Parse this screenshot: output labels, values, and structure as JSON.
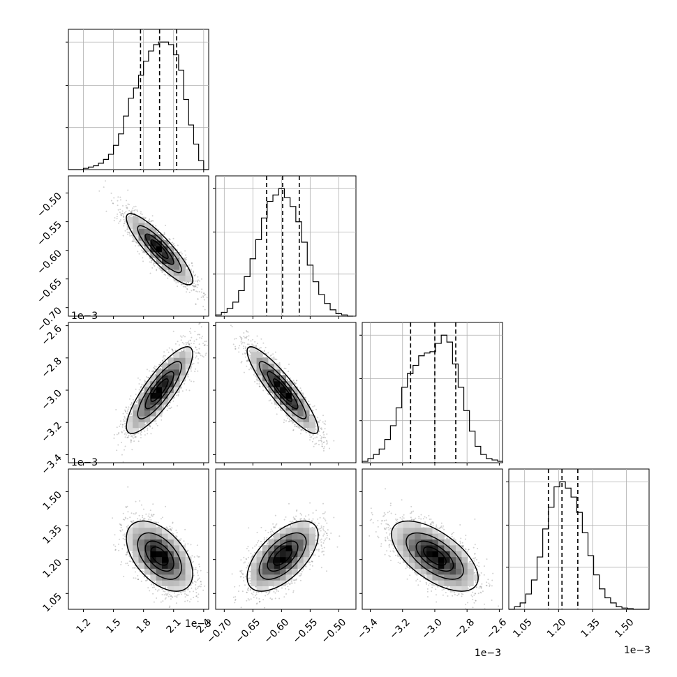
{
  "chart_data": {
    "type": "corner",
    "grid": true,
    "parameters": [
      {
        "range": [
          1.05,
          2.45
        ],
        "ticks": [
          1.2,
          1.5,
          1.8,
          2.1,
          2.4
        ],
        "tick_labels": [
          "1.2",
          "1.5",
          "1.8",
          "2.1",
          "2.4"
        ],
        "offset_label": "1e−3",
        "quantiles": [
          1.77,
          1.96,
          2.13
        ],
        "histogram": {
          "edges": [
            1.05,
            1.1,
            1.15,
            1.2,
            1.25,
            1.3,
            1.35,
            1.4,
            1.45,
            1.5,
            1.55,
            1.6,
            1.65,
            1.7,
            1.75,
            1.8,
            1.85,
            1.9,
            1.95,
            2.0,
            2.05,
            2.1,
            2.15,
            2.2,
            2.25,
            2.3,
            2.35,
            2.4,
            2.45
          ],
          "counts": [
            0,
            0,
            0,
            0.01,
            0.02,
            0.03,
            0.05,
            0.08,
            0.12,
            0.19,
            0.28,
            0.42,
            0.56,
            0.64,
            0.74,
            0.85,
            0.93,
            0.98,
            1.0,
            1.0,
            0.98,
            0.9,
            0.78,
            0.55,
            0.35,
            0.2,
            0.07,
            0.0
          ]
        }
      },
      {
        "range": [
          -0.715,
          -0.47
        ],
        "ticks": [
          -0.7,
          -0.65,
          -0.6,
          -0.55,
          -0.5
        ],
        "tick_labels": [
          "−0.70",
          "−0.65",
          "−0.60",
          "−0.55",
          "−0.50"
        ],
        "offset_label": "1e−3",
        "quantiles": [
          -0.626,
          -0.598,
          -0.569
        ],
        "histogram": {
          "edges": [
            -0.715,
            -0.705,
            -0.695,
            -0.685,
            -0.675,
            -0.665,
            -0.655,
            -0.645,
            -0.635,
            -0.625,
            -0.615,
            -0.605,
            -0.595,
            -0.585,
            -0.575,
            -0.565,
            -0.555,
            -0.545,
            -0.535,
            -0.525,
            -0.515,
            -0.505,
            -0.495,
            -0.485,
            -0.475
          ],
          "counts": [
            0.01,
            0.03,
            0.06,
            0.11,
            0.2,
            0.31,
            0.45,
            0.6,
            0.77,
            0.9,
            0.95,
            1.0,
            0.93,
            0.86,
            0.74,
            0.58,
            0.4,
            0.27,
            0.17,
            0.1,
            0.05,
            0.02,
            0.01,
            0.0
          ]
        }
      },
      {
        "range": [
          -3.45,
          -2.58
        ],
        "ticks": [
          -3.4,
          -3.2,
          -3.0,
          -2.8,
          -2.6
        ],
        "tick_labels": [
          "−3.4",
          "−3.2",
          "−3.0",
          "−2.8",
          "−2.6"
        ],
        "offset_label": "1e−3",
        "quantiles": [
          -3.15,
          -3.0,
          -2.87
        ],
        "histogram": {
          "edges": [
            -3.45,
            -3.415,
            -3.38,
            -3.345,
            -3.31,
            -3.275,
            -3.24,
            -3.205,
            -3.17,
            -3.135,
            -3.1,
            -3.065,
            -3.03,
            -2.995,
            -2.96,
            -2.925,
            -2.89,
            -2.855,
            -2.82,
            -2.785,
            -2.75,
            -2.715,
            -2.68,
            -2.645,
            -2.61,
            -2.58
          ],
          "counts": [
            0.01,
            0.03,
            0.06,
            0.1,
            0.17,
            0.27,
            0.4,
            0.55,
            0.65,
            0.71,
            0.78,
            0.8,
            0.81,
            0.87,
            0.93,
            0.88,
            0.72,
            0.55,
            0.38,
            0.23,
            0.12,
            0.06,
            0.03,
            0.02,
            0.01
          ]
        }
      },
      {
        "range": [
          0.98,
          1.6
        ],
        "ticks": [
          1.05,
          1.2,
          1.35,
          1.5
        ],
        "tick_labels": [
          "1.05",
          "1.20",
          "1.35",
          "1.50"
        ],
        "offset_label": "1e−3",
        "quantiles": [
          1.155,
          1.215,
          1.285
        ],
        "histogram": {
          "edges": [
            0.98,
            1.005,
            1.03,
            1.055,
            1.08,
            1.105,
            1.13,
            1.155,
            1.18,
            1.205,
            1.23,
            1.255,
            1.28,
            1.305,
            1.33,
            1.355,
            1.38,
            1.405,
            1.43,
            1.455,
            1.48,
            1.505,
            1.53,
            1.555,
            1.58,
            1.6
          ],
          "counts": [
            0.0,
            0.02,
            0.05,
            0.12,
            0.23,
            0.41,
            0.63,
            0.8,
            0.96,
            1.0,
            0.95,
            0.88,
            0.76,
            0.6,
            0.42,
            0.27,
            0.16,
            0.09,
            0.05,
            0.02,
            0.01,
            0.005,
            0.0,
            0.0,
            0.0
          ]
        }
      }
    ],
    "joint": [
      {
        "i": 1,
        "j": 0,
        "center": [
          1.96,
          -0.598
        ],
        "sigma": [
          0.16,
          0.03
        ],
        "rho": -0.88
      },
      {
        "i": 2,
        "j": 0,
        "center": [
          1.96,
          -3.0
        ],
        "sigma": [
          0.16,
          0.13
        ],
        "rho": 0.84
      },
      {
        "i": 2,
        "j": 1,
        "center": [
          -0.598,
          -3.0
        ],
        "sigma": [
          0.03,
          0.13
        ],
        "rho": -0.9
      },
      {
        "i": 3,
        "j": 0,
        "center": [
          1.96,
          1.215
        ],
        "sigma": [
          0.16,
          0.075
        ],
        "rho": -0.5
      },
      {
        "i": 3,
        "j": 1,
        "center": [
          -0.598,
          1.215
        ],
        "sigma": [
          0.03,
          0.075
        ],
        "rho": 0.6
      },
      {
        "i": 3,
        "j": 2,
        "center": [
          -3.0,
          1.215
        ],
        "sigma": [
          0.13,
          0.075
        ],
        "rho": -0.62
      }
    ],
    "contour_levels_sigma": [
      0.5,
      1.0,
      1.5,
      2.0
    ]
  }
}
